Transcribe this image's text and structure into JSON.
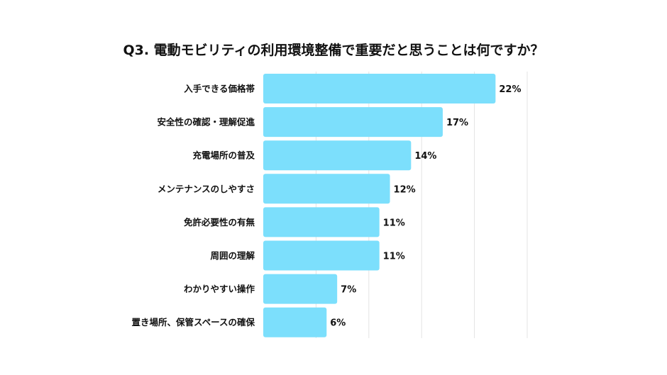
{
  "chart_data": {
    "type": "bar",
    "orientation": "horizontal",
    "title": "Q3. 電動モビリティの利用環境整備で重要だと思うことは何ですか？",
    "categories": [
      "入手できる価格帯",
      "安全性の確認・理解促進",
      "充電場所の普及",
      "メンテナンスのしやすさ",
      "免許必要性の有無",
      "周囲の理解",
      "わかりやすい操作",
      "置き場所、保管スペースの確保"
    ],
    "values": [
      22,
      17,
      14,
      12,
      11,
      11,
      7,
      6
    ],
    "data_labels": [
      "22%",
      "17%",
      "14%",
      "12%",
      "11%",
      "11%",
      "7%",
      "6%"
    ],
    "unit": "%",
    "xlim": [
      0,
      25
    ],
    "grid": true,
    "grid_step": 5,
    "colors": {
      "bar": "#7CDFFC",
      "grid": "#E3E3E3"
    }
  }
}
